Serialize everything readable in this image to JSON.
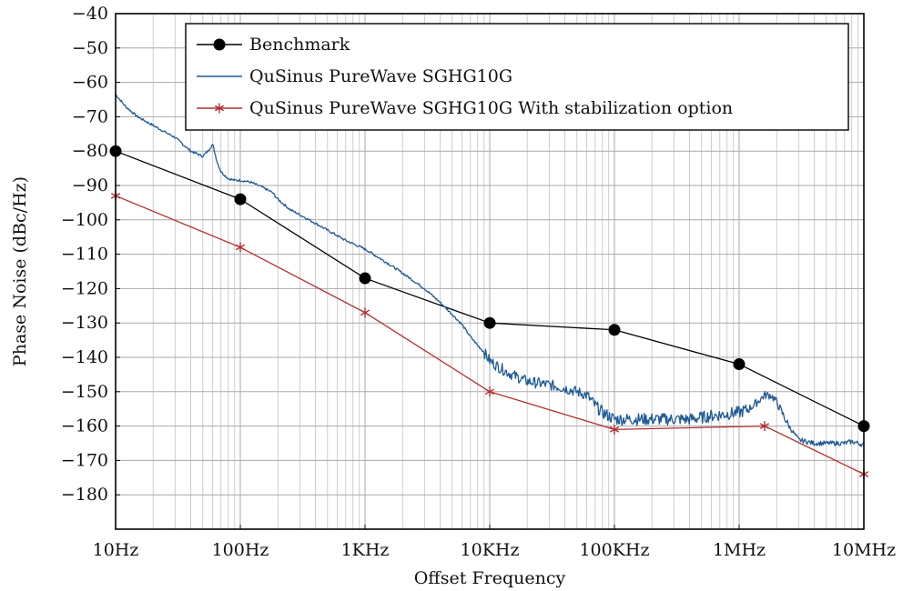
{
  "chart_data": {
    "type": "line",
    "title": "",
    "xlabel": "Offset Frequency",
    "ylabel": "Phase Noise (dBc/Hz)",
    "x_scale": "log",
    "xlim": [
      10,
      10000000
    ],
    "ylim": [
      -190,
      -40
    ],
    "grid": true,
    "legend_position": "top-right",
    "x_ticks": [
      {
        "value": 10,
        "label": "10Hz"
      },
      {
        "value": 100,
        "label": "100Hz"
      },
      {
        "value": 1000,
        "label": "1KHz"
      },
      {
        "value": 10000,
        "label": "10KHz"
      },
      {
        "value": 100000,
        "label": "100KHz"
      },
      {
        "value": 1000000,
        "label": "1MHz"
      },
      {
        "value": 10000000,
        "label": "10MHz"
      }
    ],
    "y_ticks": [
      {
        "value": -40,
        "label": "−40"
      },
      {
        "value": -50,
        "label": "−50"
      },
      {
        "value": -60,
        "label": "−60"
      },
      {
        "value": -70,
        "label": "−70"
      },
      {
        "value": -80,
        "label": "−80"
      },
      {
        "value": -90,
        "label": "−90"
      },
      {
        "value": -100,
        "label": "−100"
      },
      {
        "value": -110,
        "label": "−110"
      },
      {
        "value": -120,
        "label": "−120"
      },
      {
        "value": -130,
        "label": "−130"
      },
      {
        "value": -140,
        "label": "−140"
      },
      {
        "value": -150,
        "label": "−150"
      },
      {
        "value": -160,
        "label": "−160"
      },
      {
        "value": -170,
        "label": "−170"
      },
      {
        "value": -180,
        "label": "−180"
      }
    ],
    "series": [
      {
        "name": "Benchmark",
        "color": "#000000",
        "marker": "circle",
        "x": [
          10,
          100,
          1000,
          10000,
          100000,
          1000000,
          10000000
        ],
        "y": [
          -80,
          -94,
          -117,
          -130,
          -132,
          -142,
          -160
        ]
      },
      {
        "name": "QuSinus PureWave SGHG10G",
        "color": "#1f5a96",
        "marker": "none",
        "noisy": true,
        "x": [
          10,
          12,
          15,
          20,
          25,
          30,
          40,
          50,
          55,
          60,
          65,
          70,
          80,
          90,
          100,
          120,
          150,
          180,
          200,
          250,
          300,
          400,
          500,
          700,
          1000,
          1500,
          2000,
          3000,
          4000,
          5000,
          6000,
          7000,
          8000,
          9000,
          10000,
          12000,
          15000,
          20000,
          30000,
          40000,
          50000,
          60000,
          70000,
          80000,
          100000,
          150000,
          200000,
          300000,
          400000,
          500000,
          600000,
          800000,
          1000000,
          1200000,
          1400000,
          1600000,
          1800000,
          2000000,
          2500000,
          3000000,
          4000000,
          5000000,
          6000000,
          7000000,
          8000000,
          9000000,
          10000000
        ],
        "y": [
          -63.5,
          -67,
          -70,
          -72.5,
          -74.5,
          -76,
          -80,
          -81.5,
          -80,
          -78,
          -83,
          -86,
          -88,
          -88.5,
          -88.5,
          -89,
          -90.5,
          -92,
          -94,
          -97,
          -98.5,
          -101,
          -103,
          -106,
          -108.5,
          -112.5,
          -115.5,
          -120,
          -124,
          -127.5,
          -130.5,
          -134,
          -136.5,
          -138.5,
          -141,
          -143,
          -145,
          -147,
          -148,
          -149,
          -150,
          -151,
          -154,
          -156,
          -158,
          -158,
          -158,
          -158,
          -158,
          -157.5,
          -157,
          -156.5,
          -156,
          -155,
          -153,
          -151,
          -151,
          -153,
          -160,
          -164,
          -165,
          -165,
          -165,
          -165,
          -164.5,
          -165,
          -165.5
        ]
      },
      {
        "name": "QuSinus PureWave SGHG10G With stabilization option",
        "color": "#b03033",
        "marker": "star",
        "x": [
          10,
          100,
          1000,
          10000,
          100000,
          1600000,
          10000000
        ],
        "y": [
          -93,
          -108,
          -127,
          -150,
          -161,
          -160,
          -174
        ]
      }
    ]
  }
}
